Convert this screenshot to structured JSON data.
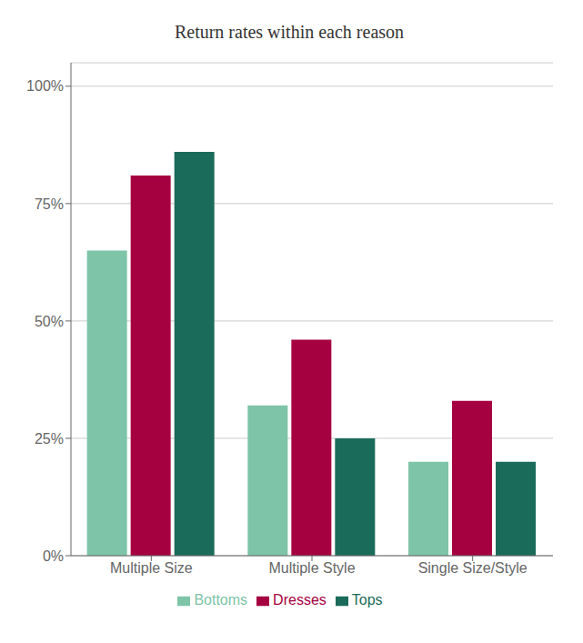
{
  "chart_data": {
    "type": "bar",
    "title": "Return rates within each reason",
    "categories": [
      "Multiple Size",
      "Multiple Style",
      "Single Size/Style"
    ],
    "series": [
      {
        "name": "Bottoms",
        "color": "#7DC4A8",
        "values": [
          0.65,
          0.32,
          0.2
        ]
      },
      {
        "name": "Dresses",
        "color": "#A50040",
        "values": [
          0.81,
          0.46,
          0.33
        ]
      },
      {
        "name": "Tops",
        "color": "#1B6B5A",
        "values": [
          0.86,
          0.25,
          0.2
        ]
      }
    ],
    "ylim": [
      0,
      1.05
    ],
    "yticks": [
      {
        "value": 0,
        "label": "0%"
      },
      {
        "value": 0.25,
        "label": "25%"
      },
      {
        "value": 0.5,
        "label": "50%"
      },
      {
        "value": 0.75,
        "label": "75%"
      },
      {
        "value": 1.0,
        "label": "100%"
      }
    ],
    "grid": true,
    "legend": "bottom"
  }
}
